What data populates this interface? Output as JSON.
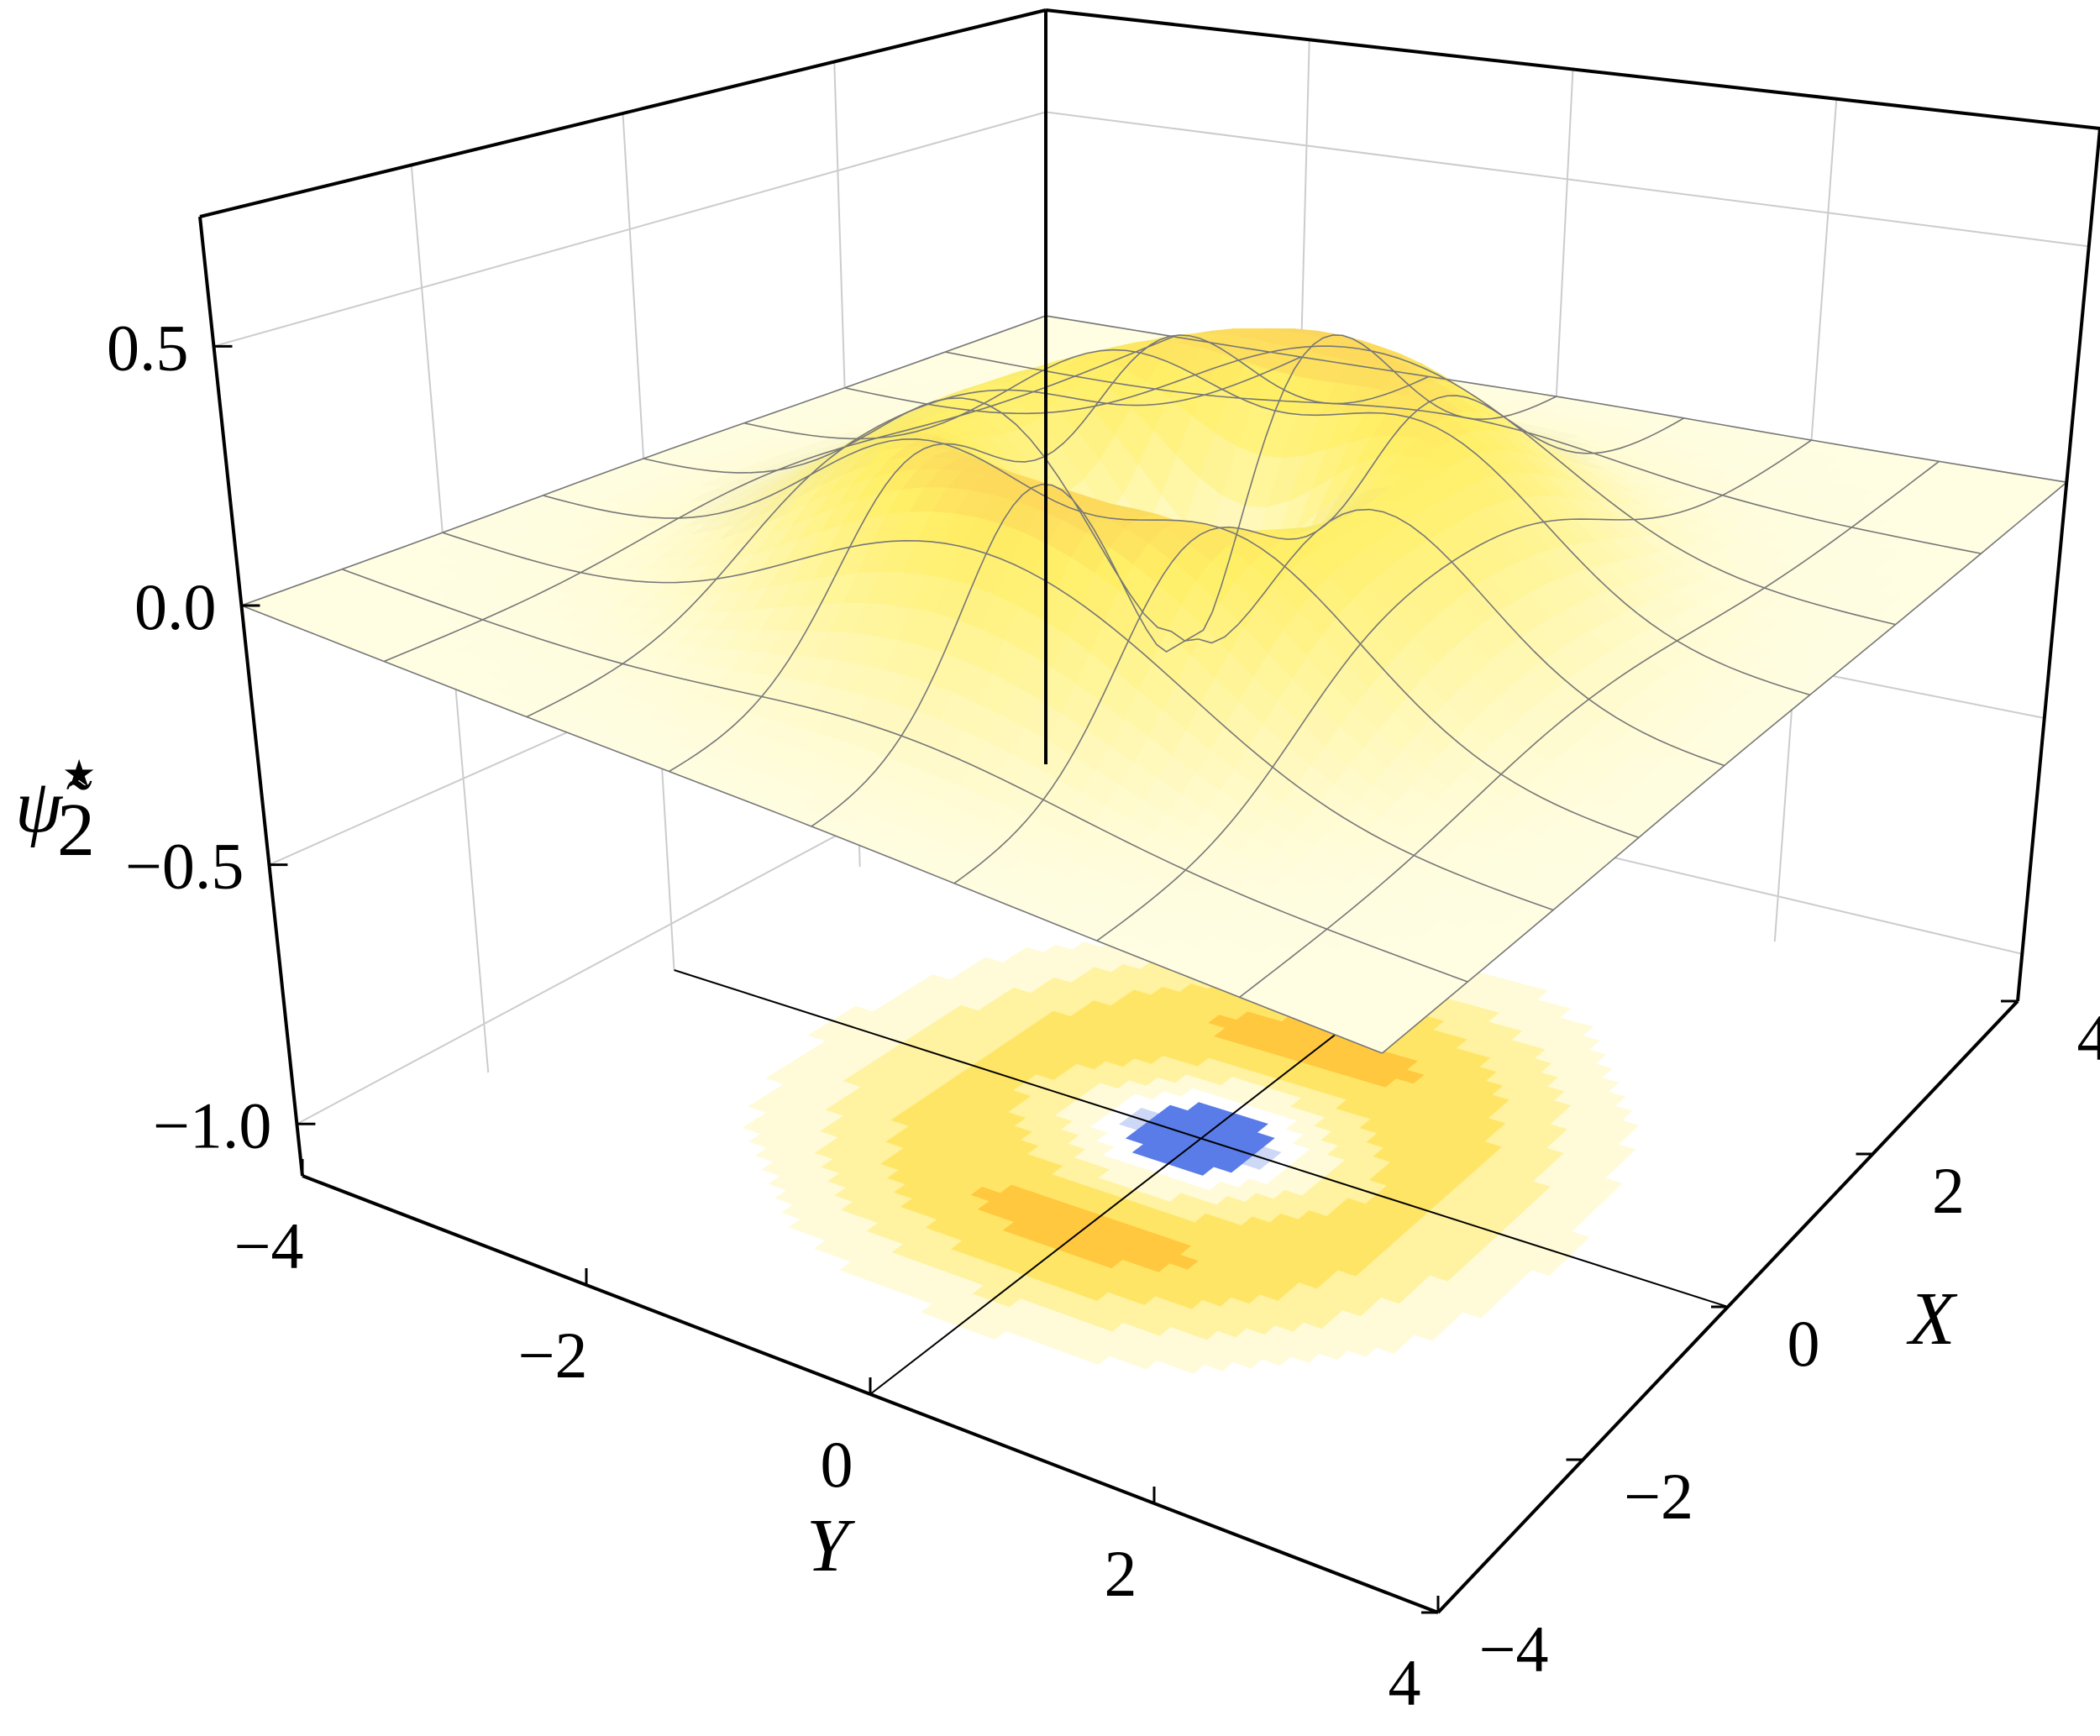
{
  "chart_data": {
    "type": "surface3d",
    "title": "",
    "zlabel": "ψ̃",
    "zlabel_sub": "2",
    "zlabel_sup": "⋆",
    "xlabel": "X",
    "ylabel": "Y",
    "xlim": [
      -4,
      4
    ],
    "ylim": [
      -4,
      4
    ],
    "zlim": [
      -1.1,
      0.75
    ],
    "xticks": [
      -4,
      -2,
      0,
      2,
      4
    ],
    "xtick_labels": [
      "−4",
      "−2",
      "0",
      "2",
      "4"
    ],
    "yticks": [
      -4,
      -2,
      0,
      2,
      4
    ],
    "ytick_labels": [
      "−4",
      "−2",
      "0",
      "2",
      "4"
    ],
    "zticks": [
      -1.0,
      -0.5,
      0.0,
      0.5
    ],
    "ztick_labels": [
      "−1.0",
      "−0.5",
      "0.0",
      "0.5"
    ],
    "surface": {
      "peaks": 4,
      "peak_max": 0.7,
      "center_min": -0.05,
      "description_values": {
        "peak_x_positions": [
          -0.9,
          0.9
        ],
        "peak_y_positions": [
          -1.1,
          1.1
        ]
      }
    },
    "contour_projection": {
      "at_z": -1.1,
      "levels": [
        -0.05,
        -0.03,
        -0.015,
        0.0,
        0.1,
        0.2,
        0.3,
        0.4,
        0.5,
        0.6
      ],
      "colors": [
        "#5a7ce8",
        "#8fa6ee",
        "#cdd8f6",
        "#ffffff",
        "#fffbd8",
        "#fff2a0",
        "#ffe566",
        "#ffc83e",
        "#f5a33a",
        "#e2533a"
      ]
    },
    "grid": true,
    "colors": {
      "surface_low": "#fffde2",
      "surface_mid": "#ffef66",
      "surface_high": "#f47a30",
      "floor": "#fffde0",
      "box_edge": "#000000",
      "grid_line": "#cccccc"
    }
  }
}
